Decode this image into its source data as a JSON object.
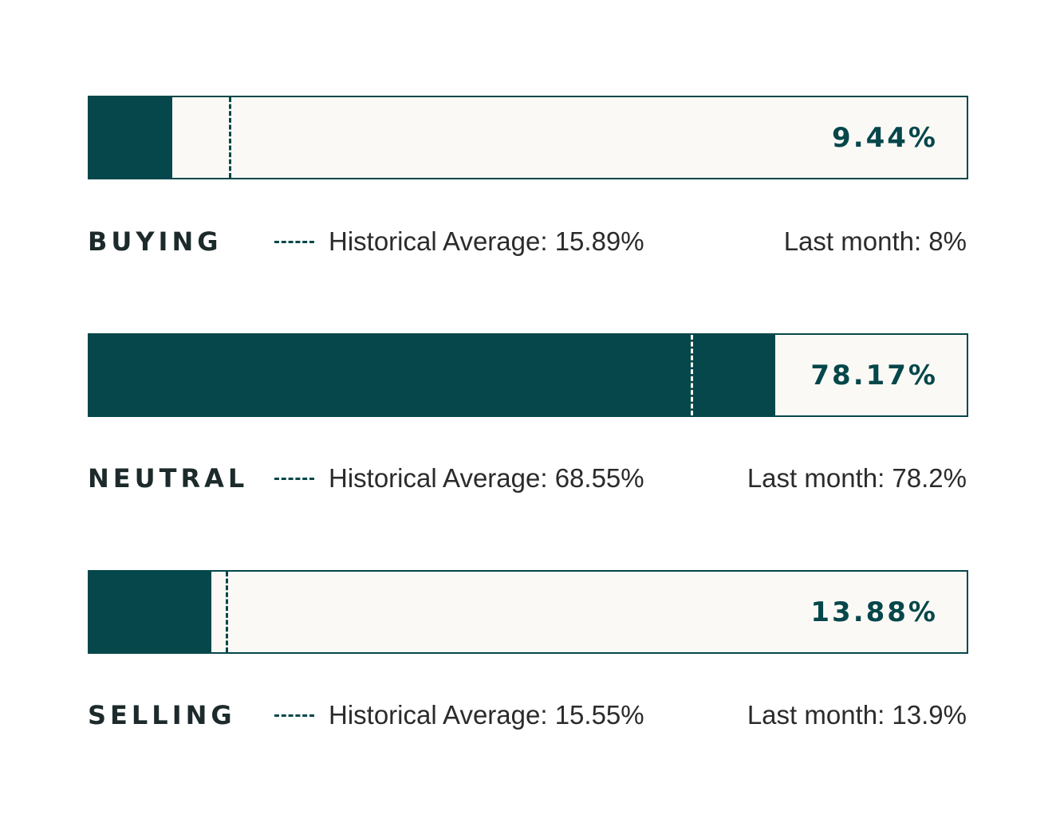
{
  "colors": {
    "accent": "#05474a",
    "bar_background": "#fbf9f6",
    "text": "#2b2b2b"
  },
  "chart_data": {
    "type": "bar",
    "orientation": "horizontal",
    "xlim": [
      0,
      100
    ],
    "series": [
      {
        "category": "BUYING",
        "value": 9.44,
        "value_label": "9.44%",
        "historical_average": 15.89,
        "historical_average_label": "Historical Average: 15.89%",
        "last_month": 8,
        "last_month_label": "Last month: 8%"
      },
      {
        "category": "NEUTRAL",
        "value": 78.17,
        "value_label": "78.17%",
        "historical_average": 68.55,
        "historical_average_label": "Historical Average: 68.55%",
        "last_month": 78.2,
        "last_month_label": "Last month: 78.2%"
      },
      {
        "category": "SELLING",
        "value": 13.88,
        "value_label": "13.88%",
        "historical_average": 15.55,
        "historical_average_label": "Historical Average: 15.55%",
        "last_month": 13.9,
        "last_month_label": "Last month: 13.9%"
      }
    ]
  }
}
